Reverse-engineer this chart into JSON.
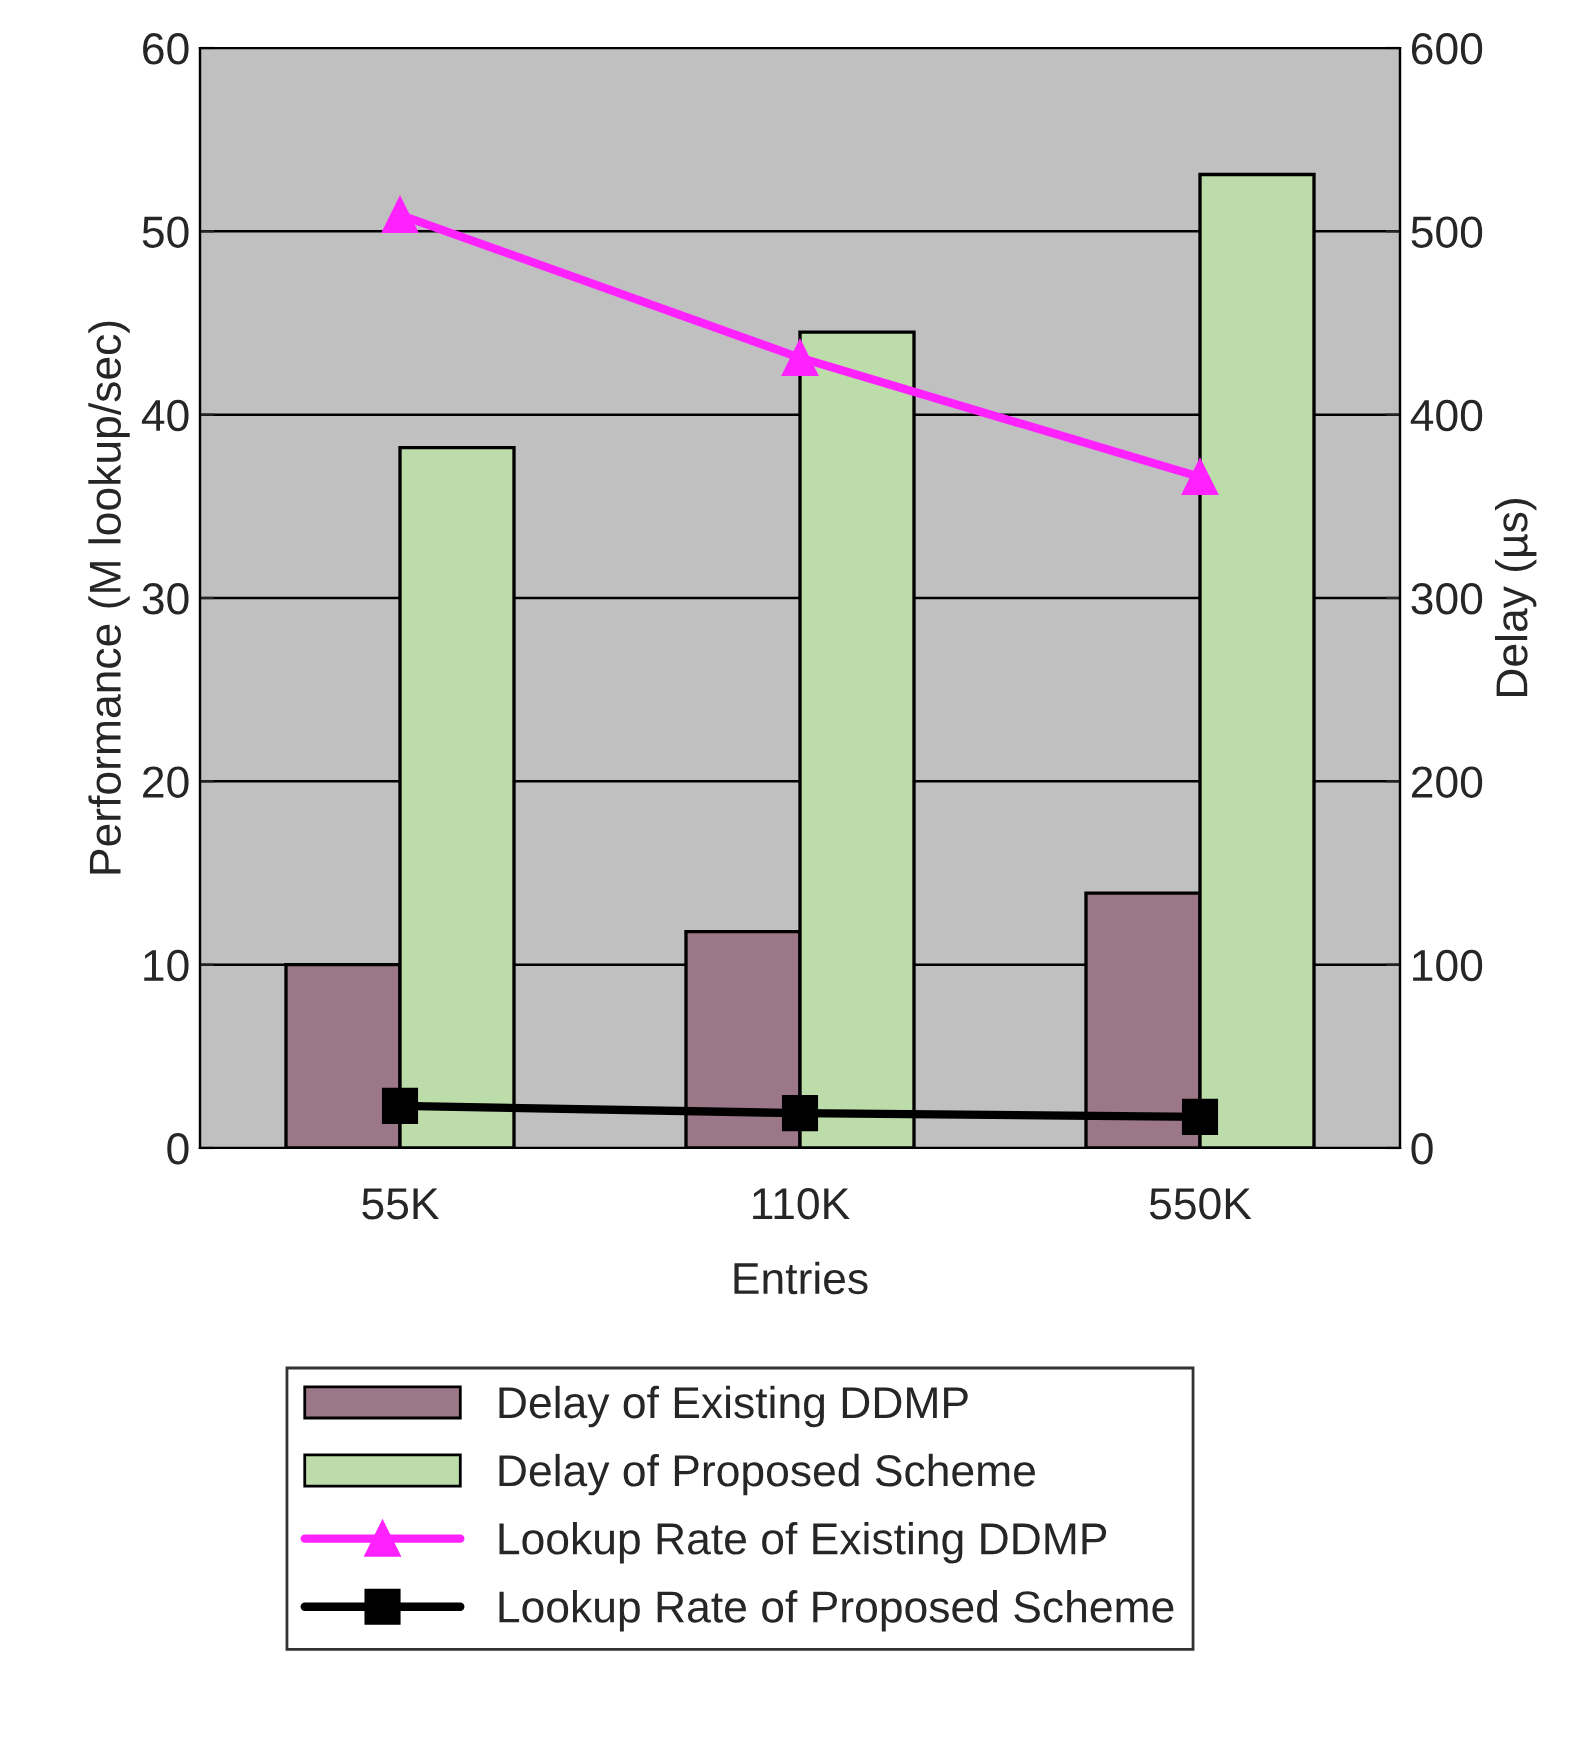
{
  "chart_data": {
    "type": "bar",
    "xlabel": "Entries",
    "ylabel": "Performance (M lookup/sec)",
    "y2label": "Delay (µs)",
    "categories": [
      "55K",
      "110K",
      "550K"
    ],
    "series": [
      {
        "name": "Delay of Existing DDMP",
        "axis": "y2",
        "color": "#9b7788",
        "values": [
          100,
          118,
          139
        ]
      },
      {
        "name": "Delay of Proposed Scheme",
        "axis": "y2",
        "color": "#bcdcaa",
        "values": [
          382,
          445,
          531
        ]
      },
      {
        "name": "Lookup Rate of Existing DDMP",
        "type": "line",
        "marker": "triangle",
        "color": "#ff22ff",
        "values": [
          50.9,
          43.1,
          36.6
        ]
      },
      {
        "name": "Lookup Rate of Proposed Scheme",
        "type": "line",
        "marker": "square",
        "color": "#000000",
        "values": [
          2.3,
          1.9,
          1.7
        ]
      }
    ],
    "ylim": [
      0,
      60
    ],
    "yticks": [
      0,
      10,
      20,
      30,
      40,
      50,
      60
    ],
    "y2lim": [
      0,
      600
    ],
    "y2ticks": [
      0,
      100,
      200,
      300,
      400,
      500,
      600
    ],
    "grid": "y",
    "legend": "bottom"
  }
}
